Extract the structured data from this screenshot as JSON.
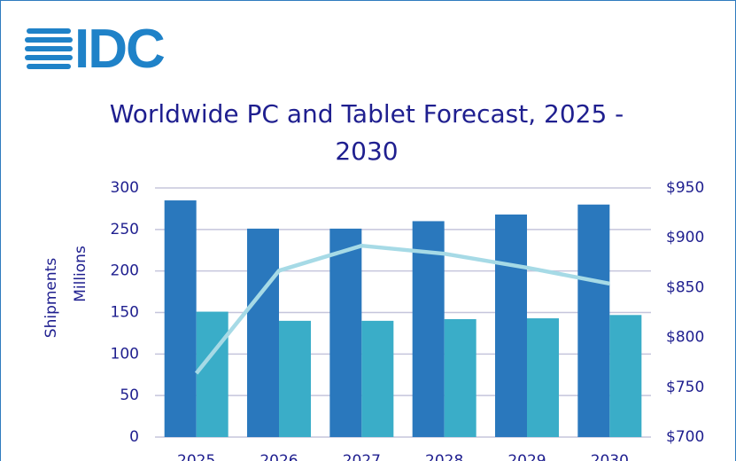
{
  "logo": "IDC",
  "chart_data": {
    "type": "bar_line",
    "title": "Worldwide PC and Tablet Forecast, 2025 - 2030",
    "y_label_lines": [
      "Shipments",
      "Millions"
    ],
    "categories": [
      "2025",
      "2026",
      "2027",
      "2028",
      "2029",
      "2030"
    ],
    "series": [
      {
        "type": "bar",
        "color": "#2a78bd",
        "values": [
          285,
          251,
          251,
          260,
          268,
          280
        ]
      },
      {
        "type": "bar",
        "color": "#3aadc8",
        "values": [
          151,
          140,
          140,
          142,
          143,
          147
        ]
      },
      {
        "type": "line",
        "axis": "y2",
        "color": "#a6dae6",
        "values": [
          764,
          867,
          892,
          884,
          870,
          854
        ]
      }
    ],
    "ylim": [
      0,
      300
    ],
    "yticks": [
      0,
      50,
      100,
      150,
      200,
      250,
      300
    ],
    "y2lim": [
      700,
      950
    ],
    "y2ticks": [
      {
        "value": 700,
        "label": "$700"
      },
      {
        "value": 750,
        "label": "$750"
      },
      {
        "value": 800,
        "label": "$800"
      },
      {
        "value": 850,
        "label": "$850"
      },
      {
        "value": 900,
        "label": "$900"
      },
      {
        "value": 950,
        "label": "$950"
      }
    ],
    "grid": true
  }
}
